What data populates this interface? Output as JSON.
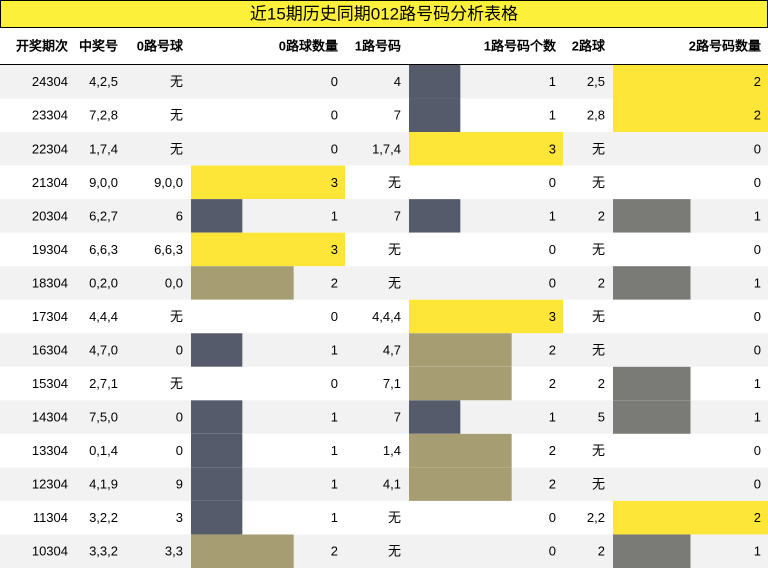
{
  "title": "近15期历史同期012路号码分析表格",
  "table": {
    "columns": [
      {
        "header": "开奖期次"
      },
      {
        "header": "中奖号"
      },
      {
        "header": "0路号球"
      },
      {
        "header": "0路球数量",
        "bar_colors": {
          "1": "#555b6b",
          "2": "#a69e72",
          "3": "#fde637"
        }
      },
      {
        "header": "1路号码"
      },
      {
        "header": "1路号码个数",
        "bar_colors": {
          "1": "#555b6b",
          "2": "#a69e72",
          "3": "#fde637"
        }
      },
      {
        "header": "2路球"
      },
      {
        "header": "2路号码数量",
        "bar_colors": {
          "1": "#7a7a76",
          "2": "#fde637"
        }
      }
    ],
    "rows": [
      [
        "24304",
        "4,2,5",
        "无",
        0,
        "4",
        1,
        "2,5",
        2
      ],
      [
        "23304",
        "7,2,8",
        "无",
        0,
        "7",
        1,
        "2,8",
        2
      ],
      [
        "22304",
        "1,7,4",
        "无",
        0,
        "1,7,4",
        3,
        "无",
        0
      ],
      [
        "21304",
        "9,0,0",
        "9,0,0",
        3,
        "无",
        0,
        "无",
        0
      ],
      [
        "20304",
        "6,2,7",
        "6",
        1,
        "7",
        1,
        "2",
        1
      ],
      [
        "19304",
        "6,6,3",
        "6,6,3",
        3,
        "无",
        0,
        "无",
        0
      ],
      [
        "18304",
        "0,2,0",
        "0,0",
        2,
        "无",
        0,
        "2",
        1
      ],
      [
        "17304",
        "4,4,4",
        "无",
        0,
        "4,4,4",
        3,
        "无",
        0
      ],
      [
        "16304",
        "4,7,0",
        "0",
        1,
        "4,7",
        2,
        "无",
        0
      ],
      [
        "15304",
        "2,7,1",
        "无",
        0,
        "7,1",
        2,
        "2",
        1
      ],
      [
        "14304",
        "7,5,0",
        "0",
        1,
        "7",
        1,
        "5",
        1
      ],
      [
        "13304",
        "0,1,4",
        "0",
        1,
        "1,4",
        2,
        "无",
        0
      ],
      [
        "12304",
        "4,1,9",
        "9",
        1,
        "4,1",
        2,
        "无",
        0
      ],
      [
        "11304",
        "3,2,2",
        "3",
        1,
        "无",
        0,
        "2,2",
        2
      ],
      [
        "10304",
        "3,3,2",
        "3,3",
        2,
        "无",
        0,
        "2",
        1
      ]
    ]
  }
}
